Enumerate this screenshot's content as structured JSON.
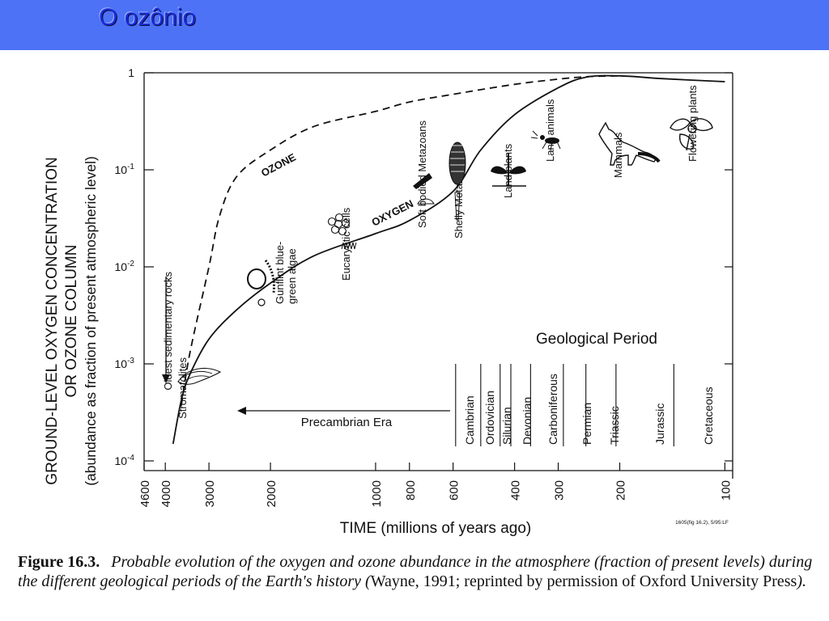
{
  "slide": {
    "title": "O ozônio",
    "title_color": "#1a2ed8",
    "bar_color": "#4d72f5"
  },
  "chart_data": {
    "type": "line",
    "xlabel": "TIME (millions of years ago)",
    "ylabel_lines": [
      "GROUND-LEVEL OXYGEN CONCENTRATION",
      "OR OZONE COLUMN",
      "(abundance as fraction of present atmospheric level)"
    ],
    "x_scale": "log (time)",
    "x_ticks": [
      4600,
      4000,
      3000,
      2000,
      1000,
      800,
      600,
      400,
      300,
      200,
      100
    ],
    "y_scale": "log",
    "y_ticks": [
      {
        "value": 1,
        "base": "1",
        "exp": ""
      },
      {
        "value": 0.1,
        "base": "10",
        "exp": "-1"
      },
      {
        "value": 0.01,
        "base": "10",
        "exp": "-2"
      },
      {
        "value": 0.001,
        "base": "10",
        "exp": "-3"
      },
      {
        "value": 0.0001,
        "base": "10",
        "exp": "-4"
      }
    ],
    "series": [
      {
        "name": "OXYGEN",
        "style": "solid",
        "points": [
          [
            3800,
            0.00015
          ],
          [
            3600,
            0.00042
          ],
          [
            3400,
            0.00078
          ],
          [
            3000,
            0.0018
          ],
          [
            2500,
            0.0036
          ],
          [
            2000,
            0.0068
          ],
          [
            1500,
            0.013
          ],
          [
            1000,
            0.022
          ],
          [
            800,
            0.03
          ],
          [
            600,
            0.06
          ],
          [
            500,
            0.16
          ],
          [
            400,
            0.37
          ],
          [
            300,
            0.7
          ],
          [
            250,
            0.9
          ],
          [
            200,
            0.93
          ],
          [
            150,
            0.87
          ],
          [
            100,
            0.81
          ]
        ]
      },
      {
        "name": "OZONE",
        "style": "dashed",
        "points": [
          [
            3600,
            0.00037
          ],
          [
            3400,
            0.0013
          ],
          [
            3000,
            0.01
          ],
          [
            2800,
            0.033
          ],
          [
            2500,
            0.085
          ],
          [
            2000,
            0.16
          ],
          [
            1500,
            0.28
          ],
          [
            1000,
            0.4
          ],
          [
            800,
            0.5
          ],
          [
            600,
            0.6
          ],
          [
            400,
            0.76
          ],
          [
            300,
            0.86
          ],
          [
            250,
            0.91
          ],
          [
            200,
            0.93
          ]
        ]
      }
    ],
    "event_labels": [
      {
        "text": "Oldest sedimentary rocks",
        "time": 3850
      },
      {
        "text": "Stromatolites",
        "time": 3450
      },
      {
        "text": "Gunflint blue-",
        "text2": "green algae",
        "time": 1950
      },
      {
        "text": "Eucaryotic cells",
        "time": 1250
      },
      {
        "text": "Soft bodied Metazoans",
        "time": 680
      },
      {
        "text": "Shelly Metazoans",
        "time": 560
      },
      {
        "text": "Land plants",
        "time": 420
      },
      {
        "text": "Land animals",
        "time": 330
      },
      {
        "text": "Mammals",
        "time": 210
      },
      {
        "text": "Flowering plants",
        "time": 120
      }
    ],
    "geological_period_title": "Geological Period",
    "periods": [
      {
        "name": "Cambrian",
        "time": 540
      },
      {
        "name": "Ordovician",
        "time": 470
      },
      {
        "name": "Silurian",
        "time": 430
      },
      {
        "name": "Devonian",
        "time": 390
      },
      {
        "name": "Carboniferous",
        "time": 320
      },
      {
        "name": "Permian",
        "time": 265
      },
      {
        "name": "Triassic",
        "time": 220
      },
      {
        "name": "Jurassic",
        "time": 170
      },
      {
        "name": "Cretaceous",
        "time": 110
      }
    ],
    "period_boundaries": [
      590,
      500,
      440,
      410,
      360,
      290,
      250,
      205,
      140
    ],
    "precambrian_label": "Precambrian Era",
    "small_ref": "1605(fig 16.2), 5/95:LF",
    "line_color": "#111111"
  },
  "caption": {
    "label": "Figure 16.3.",
    "text": "Probable evolution of the oxygen and ozone abundance in the atmosphere (fraction of present levels) during the different geological periods of the Earth's history (",
    "citation": "Wayne, 1991; reprinted by permission of Oxford University Press",
    "end": ")."
  }
}
